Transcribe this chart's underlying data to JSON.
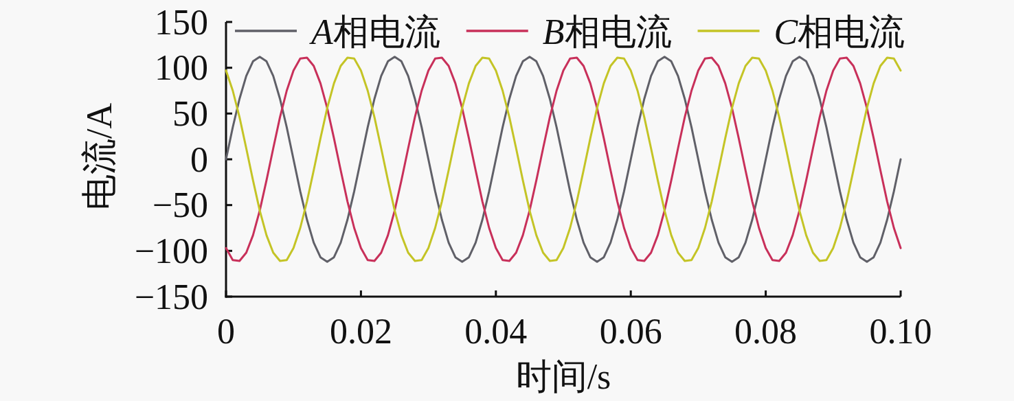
{
  "chart_data": {
    "type": "line",
    "xlabel": "时间/s",
    "ylabel": "电流/A",
    "x": [
      0,
      0.001,
      0.002,
      0.003,
      0.004,
      0.005,
      0.006,
      0.007,
      0.008,
      0.009,
      0.01,
      0.011,
      0.012,
      0.013,
      0.014,
      0.015,
      0.016,
      0.017,
      0.018,
      0.019,
      0.02,
      0.021,
      0.022,
      0.023,
      0.024,
      0.025,
      0.026,
      0.027,
      0.028,
      0.029,
      0.03,
      0.031,
      0.032,
      0.033,
      0.034,
      0.035,
      0.036,
      0.037,
      0.038,
      0.039,
      0.04,
      0.041,
      0.042,
      0.043,
      0.044,
      0.045,
      0.046,
      0.047,
      0.048,
      0.049,
      0.05,
      0.051,
      0.052,
      0.053,
      0.054,
      0.055,
      0.056,
      0.057,
      0.058,
      0.059,
      0.06,
      0.061,
      0.062,
      0.063,
      0.064,
      0.065,
      0.066,
      0.067,
      0.068,
      0.069,
      0.07,
      0.071,
      0.072,
      0.073,
      0.074,
      0.075,
      0.076,
      0.077,
      0.078,
      0.079,
      0.08,
      0.081,
      0.082,
      0.083,
      0.084,
      0.085,
      0.086,
      0.087,
      0.088,
      0.089,
      0.09,
      0.091,
      0.092,
      0.093,
      0.094,
      0.095,
      0.096,
      0.097,
      0.098,
      0.099,
      0.1
    ],
    "xlim": [
      0,
      0.1
    ],
    "xticks": [
      0,
      0.02,
      0.04,
      0.06,
      0.08,
      {
        "value": 0.1,
        "label": "0.10"
      }
    ],
    "ylim": [
      -150,
      150
    ],
    "yticks": [
      {
        "value": -150,
        "label": "−150"
      },
      {
        "value": -100,
        "label": "−100"
      },
      {
        "value": -50,
        "label": "−50"
      },
      0,
      50,
      100,
      150
    ],
    "legend": "top",
    "line_style": "solid",
    "series": [
      {
        "name": "A相电流",
        "color": "#606068",
        "values": [
          0,
          35,
          66,
          91,
          107,
          112,
          107,
          91,
          66,
          35,
          0,
          -35,
          -66,
          -91,
          -107,
          -112,
          -107,
          -91,
          -66,
          -35,
          0,
          35,
          66,
          91,
          107,
          112,
          107,
          91,
          66,
          35,
          0,
          -35,
          -66,
          -91,
          -107,
          -112,
          -107,
          -91,
          -66,
          -35,
          0,
          35,
          66,
          91,
          107,
          112,
          107,
          91,
          66,
          35,
          0,
          -35,
          -66,
          -91,
          -107,
          -112,
          -107,
          -91,
          -66,
          -35,
          0,
          35,
          66,
          91,
          107,
          112,
          107,
          91,
          66,
          35,
          0,
          -35,
          -66,
          -91,
          -107,
          -112,
          -107,
          -91,
          -66,
          -35,
          0,
          35,
          66,
          91,
          107,
          112,
          107,
          91,
          66,
          35,
          0,
          -35,
          -66,
          -91,
          -107,
          -112,
          -107,
          -91,
          -66,
          -35,
          0
        ]
      },
      {
        "name": "B相电流",
        "color": "#c8305a",
        "values": [
          -97,
          -110,
          -111,
          -102,
          -83,
          -56,
          -23,
          12,
          46,
          75,
          97,
          110,
          111,
          102,
          83,
          56,
          23,
          -12,
          -46,
          -75,
          -97,
          -110,
          -111,
          -102,
          -83,
          -56,
          -23,
          12,
          46,
          75,
          97,
          110,
          111,
          102,
          83,
          56,
          23,
          -12,
          -46,
          -75,
          -97,
          -110,
          -111,
          -102,
          -83,
          -56,
          -23,
          12,
          46,
          75,
          97,
          110,
          111,
          102,
          83,
          56,
          23,
          -12,
          -46,
          -75,
          -97,
          -110,
          -111,
          -102,
          -83,
          -56,
          -23,
          12,
          46,
          75,
          97,
          110,
          111,
          102,
          83,
          56,
          23,
          -12,
          -46,
          -75,
          -97,
          -110,
          -111,
          -102,
          -83,
          -56,
          -23,
          12,
          46,
          75,
          97,
          110,
          111,
          102,
          83,
          56,
          23,
          -12,
          -46,
          -75,
          -97
        ]
      },
      {
        "name": "C相电流",
        "color": "#c4c426",
        "values": [
          97,
          75,
          46,
          12,
          -23,
          -56,
          -83,
          -102,
          -111,
          -110,
          -97,
          -75,
          -46,
          -12,
          23,
          56,
          83,
          102,
          111,
          110,
          97,
          75,
          46,
          12,
          -23,
          -56,
          -83,
          -102,
          -111,
          -110,
          -97,
          -75,
          -46,
          -12,
          23,
          56,
          83,
          102,
          111,
          110,
          97,
          75,
          46,
          12,
          -23,
          -56,
          -83,
          -102,
          -111,
          -110,
          -97,
          -75,
          -46,
          -12,
          23,
          56,
          83,
          102,
          111,
          110,
          97,
          75,
          46,
          12,
          -23,
          -56,
          -83,
          -102,
          -111,
          -110,
          -97,
          -75,
          -46,
          -12,
          23,
          56,
          83,
          102,
          111,
          110,
          97,
          75,
          46,
          12,
          -23,
          -56,
          -83,
          -102,
          -111,
          -110,
          -97,
          -75,
          -46,
          -12,
          23,
          56,
          83,
          102,
          111,
          110,
          97
        ]
      }
    ]
  }
}
